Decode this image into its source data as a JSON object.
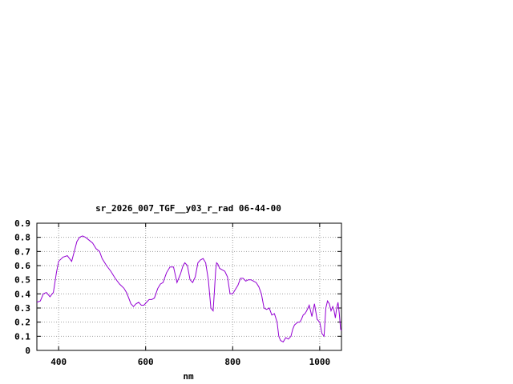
{
  "chart_data": {
    "type": "line",
    "title": "sr_2026_007_TGF__y03_r_rad 06-44-00",
    "xlabel": "nm",
    "ylabel": "",
    "xlim": [
      350,
      1050
    ],
    "ylim": [
      0,
      0.9
    ],
    "x_ticks": [
      "400",
      "600",
      "800",
      "1000"
    ],
    "y_ticks": [
      "0",
      "0.1",
      "0.2",
      "0.3",
      "0.4",
      "0.5",
      "0.6",
      "0.7",
      "0.8",
      "0.9"
    ],
    "grid": true,
    "line_color": "#9400d3",
    "series": [
      {
        "x": [
          350,
          358,
          365,
          372,
          380,
          388,
          395,
          400,
          410,
          420,
          430,
          436,
          442,
          448,
          455,
          462,
          470,
          478,
          486,
          494,
          500,
          510,
          520,
          530,
          540,
          550,
          556,
          560,
          566,
          572,
          578,
          584,
          590,
          596,
          602,
          608,
          614,
          620,
          628,
          634,
          640,
          648,
          656,
          664,
          672,
          680,
          686,
          690,
          696,
          702,
          708,
          714,
          720,
          726,
          732,
          738,
          744,
          750,
          755,
          758,
          761,
          763,
          766,
          770,
          776,
          782,
          788,
          794,
          800,
          806,
          812,
          818,
          824,
          830,
          836,
          842,
          848,
          854,
          860,
          866,
          872,
          878,
          884,
          890,
          896,
          902,
          906,
          910,
          916,
          922,
          928,
          934,
          938,
          942,
          946,
          950,
          954,
          958,
          962,
          966,
          970,
          976,
          982,
          988,
          994,
          1000,
          1005,
          1010,
          1014,
          1018,
          1022,
          1026,
          1030,
          1033,
          1036,
          1039,
          1042,
          1045,
          1048,
          1050
        ],
        "y": [
          0.34,
          0.35,
          0.4,
          0.41,
          0.38,
          0.41,
          0.55,
          0.63,
          0.66,
          0.67,
          0.63,
          0.7,
          0.77,
          0.8,
          0.81,
          0.8,
          0.78,
          0.76,
          0.72,
          0.7,
          0.65,
          0.6,
          0.56,
          0.51,
          0.47,
          0.44,
          0.41,
          0.38,
          0.33,
          0.31,
          0.33,
          0.34,
          0.32,
          0.32,
          0.34,
          0.36,
          0.36,
          0.37,
          0.44,
          0.47,
          0.48,
          0.55,
          0.59,
          0.59,
          0.48,
          0.54,
          0.6,
          0.62,
          0.6,
          0.5,
          0.48,
          0.52,
          0.62,
          0.64,
          0.65,
          0.62,
          0.5,
          0.3,
          0.28,
          0.42,
          0.57,
          0.62,
          0.61,
          0.58,
          0.57,
          0.56,
          0.52,
          0.4,
          0.4,
          0.43,
          0.46,
          0.51,
          0.51,
          0.49,
          0.5,
          0.5,
          0.49,
          0.48,
          0.45,
          0.4,
          0.3,
          0.29,
          0.3,
          0.25,
          0.26,
          0.2,
          0.1,
          0.07,
          0.06,
          0.09,
          0.08,
          0.1,
          0.15,
          0.18,
          0.19,
          0.2,
          0.2,
          0.22,
          0.25,
          0.26,
          0.28,
          0.32,
          0.24,
          0.33,
          0.22,
          0.2,
          0.12,
          0.1,
          0.3,
          0.35,
          0.33,
          0.28,
          0.31,
          0.28,
          0.23,
          0.3,
          0.34,
          0.26,
          0.15,
          0.14
        ]
      }
    ]
  }
}
